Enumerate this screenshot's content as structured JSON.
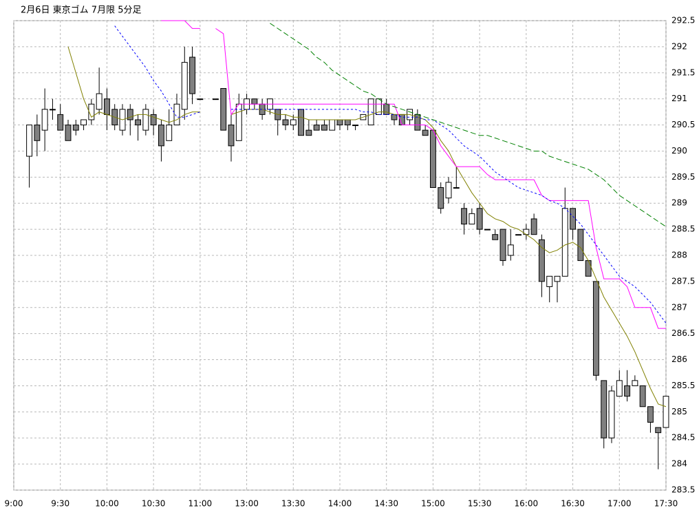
{
  "chart_data": {
    "type": "candlestick",
    "title": "2月6日 東京ゴム 7月限 5分足",
    "open": [
      null,
      null,
      289.9,
      290.5,
      290.4,
      290.8,
      290.7,
      290.5,
      290.5,
      290.5,
      290.6,
      290.8,
      291.0,
      290.8,
      290.4,
      290.8,
      290.6,
      290.4,
      290.7,
      290.5,
      290.2,
      290.5,
      290.8,
      291.8,
      291.0,
      null,
      291.0,
      291.2,
      290.5,
      290.2,
      290.8,
      291.0,
      290.9,
      290.8,
      290.8,
      290.6,
      290.5,
      290.8,
      290.4,
      290.5,
      290.5,
      290.4,
      290.6,
      290.6,
      290.5,
      290.6,
      290.5,
      290.7,
      290.9,
      290.7,
      290.7,
      290.6,
      290.7,
      290.4,
      290.4,
      289.3,
      289.1,
      289.3,
      288.9,
      288.6,
      288.9,
      288.5,
      288.4,
      288.5,
      288.0,
      288.4,
      288.4,
      288.7,
      288.3,
      287.4,
      287.5,
      287.6,
      288.9,
      288.5,
      287.9,
      287.5,
      285.6,
      284.5,
      285.3,
      285.5,
      285.5,
      285.5,
      285.1,
      284.7,
      284.7
    ],
    "high": [
      null,
      null,
      290.5,
      290.7,
      291.2,
      291.0,
      290.9,
      290.6,
      290.6,
      290.6,
      291.0,
      291.6,
      291.2,
      290.9,
      290.9,
      290.9,
      290.7,
      290.9,
      290.8,
      290.6,
      290.8,
      291.1,
      292.0,
      292.0,
      291.0,
      null,
      291.0,
      291.2,
      290.7,
      291.1,
      291.1,
      291.0,
      291.0,
      291.0,
      290.8,
      290.7,
      290.7,
      290.8,
      290.6,
      290.6,
      290.6,
      290.6,
      290.6,
      290.6,
      290.5,
      290.7,
      291.0,
      291.0,
      291.0,
      290.7,
      290.7,
      290.8,
      290.8,
      290.5,
      290.4,
      289.4,
      289.5,
      289.7,
      289.0,
      288.9,
      289.0,
      288.5,
      288.5,
      288.5,
      288.5,
      288.4,
      288.6,
      288.8,
      288.4,
      287.6,
      287.6,
      289.3,
      288.9,
      288.5,
      287.9,
      287.5,
      285.6,
      285.5,
      285.8,
      285.8,
      285.7,
      285.5,
      285.1,
      284.7,
      285.3
    ],
    "low": [
      null,
      null,
      289.3,
      289.9,
      290.0,
      290.6,
      290.4,
      290.2,
      290.3,
      290.4,
      290.5,
      290.7,
      290.4,
      290.4,
      290.3,
      290.3,
      290.2,
      290.3,
      290.3,
      289.8,
      290.2,
      290.5,
      290.6,
      290.9,
      291.0,
      null,
      291.0,
      290.4,
      289.8,
      290.2,
      290.7,
      290.8,
      290.6,
      290.7,
      290.3,
      290.4,
      290.4,
      290.3,
      290.3,
      290.4,
      290.4,
      290.4,
      290.4,
      290.4,
      290.4,
      290.6,
      290.5,
      290.7,
      290.7,
      290.5,
      290.5,
      290.5,
      290.4,
      290.3,
      289.3,
      288.8,
      289.0,
      289.3,
      288.4,
      288.6,
      288.4,
      288.5,
      288.3,
      287.8,
      287.9,
      288.4,
      288.3,
      288.4,
      287.2,
      287.1,
      287.1,
      287.6,
      288.3,
      287.9,
      287.6,
      285.6,
      284.3,
      284.4,
      285.3,
      285.2,
      285.5,
      285.1,
      284.6,
      283.9,
      284.7
    ],
    "close": [
      null,
      null,
      290.5,
      290.2,
      290.8,
      290.8,
      290.4,
      290.2,
      290.4,
      290.6,
      290.9,
      291.1,
      290.7,
      290.5,
      290.8,
      290.6,
      290.5,
      290.8,
      290.5,
      290.1,
      290.5,
      290.9,
      291.7,
      291.1,
      291.0,
      null,
      291.0,
      290.4,
      290.1,
      290.9,
      291.0,
      290.9,
      290.7,
      291.0,
      290.6,
      290.5,
      290.6,
      290.3,
      290.3,
      290.4,
      290.4,
      290.6,
      290.5,
      290.5,
      290.5,
      290.7,
      291.0,
      291.0,
      290.7,
      290.6,
      290.5,
      290.8,
      290.4,
      290.3,
      289.3,
      288.9,
      289.4,
      289.3,
      288.6,
      288.8,
      288.5,
      288.5,
      288.3,
      287.9,
      288.2,
      288.4,
      288.5,
      288.4,
      287.5,
      287.6,
      287.6,
      288.9,
      288.5,
      287.9,
      287.6,
      285.7,
      284.5,
      285.4,
      285.6,
      285.3,
      285.6,
      285.1,
      284.8,
      284.6,
      285.3
    ],
    "up_color": "#ffffff",
    "down_color": "#808080",
    "lines": [
      {
        "color": "#808000",
        "dash": "none",
        "values": [
          null,
          null,
          null,
          null,
          null,
          null,
          null,
          292.0,
          291.5,
          291.0,
          290.65,
          290.75,
          290.7,
          290.65,
          290.6,
          290.65,
          290.7,
          290.7,
          290.65,
          290.6,
          290.55,
          290.6,
          290.7,
          290.75,
          290.75,
          null,
          null,
          null,
          290.7,
          290.75,
          290.8,
          290.8,
          290.8,
          290.75,
          290.7,
          290.7,
          290.65,
          290.65,
          290.6,
          290.6,
          290.6,
          290.6,
          290.6,
          290.6,
          290.6,
          290.65,
          290.7,
          290.75,
          290.75,
          290.7,
          290.7,
          290.7,
          290.65,
          290.6,
          290.45,
          290.2,
          290.0,
          289.7,
          289.45,
          289.2,
          289.0,
          288.8,
          288.7,
          288.65,
          288.55,
          288.5,
          288.4,
          288.3,
          288.15,
          288.05,
          288.1,
          288.2,
          288.25,
          288.15,
          287.9,
          287.55,
          287.2,
          286.95,
          286.7,
          286.45,
          286.15,
          285.8,
          285.45,
          285.15,
          285.1
        ]
      },
      {
        "color": "#ff00ff",
        "dash": "none",
        "values": [
          null,
          null,
          null,
          null,
          null,
          null,
          null,
          null,
          null,
          null,
          null,
          null,
          null,
          null,
          null,
          null,
          null,
          null,
          null,
          292.5,
          292.5,
          292.5,
          292.5,
          292.35,
          292.35,
          null,
          292.35,
          292.25,
          290.7,
          290.9,
          290.9,
          290.9,
          290.9,
          290.9,
          290.9,
          290.9,
          290.9,
          290.9,
          290.9,
          290.9,
          290.9,
          290.9,
          290.9,
          290.9,
          290.9,
          290.9,
          290.9,
          290.9,
          290.9,
          290.9,
          290.5,
          290.5,
          290.5,
          290.5,
          290.4,
          290.1,
          289.9,
          289.7,
          289.7,
          289.7,
          289.7,
          289.55,
          289.45,
          289.45,
          289.45,
          289.45,
          289.45,
          289.45,
          289.15,
          289.05,
          289.05,
          289.05,
          289.05,
          289.05,
          289.05,
          288.15,
          287.55,
          287.55,
          287.55,
          287.4,
          287.0,
          287.0,
          287.0,
          286.6,
          286.6
        ]
      },
      {
        "color": "#0000ff",
        "dash": "3,3",
        "values": [
          null,
          null,
          null,
          null,
          null,
          null,
          null,
          null,
          null,
          null,
          null,
          null,
          null,
          292.4,
          292.2,
          292.0,
          291.8,
          291.6,
          291.35,
          291.15,
          290.9,
          290.65,
          290.65,
          290.7,
          290.75,
          null,
          null,
          null,
          290.8,
          290.8,
          290.8,
          290.8,
          290.8,
          290.8,
          290.8,
          290.8,
          290.8,
          290.8,
          290.8,
          290.8,
          290.8,
          290.8,
          290.8,
          290.8,
          290.8,
          290.75,
          290.75,
          290.7,
          290.7,
          290.7,
          290.65,
          290.65,
          290.65,
          290.6,
          290.6,
          290.5,
          290.4,
          290.25,
          290.1,
          290.0,
          289.9,
          289.75,
          289.6,
          289.5,
          289.4,
          289.3,
          289.25,
          289.2,
          289.15,
          289.05,
          289.0,
          288.9,
          288.75,
          288.6,
          288.4,
          288.2,
          288.0,
          287.8,
          287.6,
          287.5,
          287.4,
          287.25,
          287.1,
          286.9,
          286.7
        ]
      },
      {
        "color": "#008000",
        "dash": "8,4",
        "values": [
          null,
          null,
          null,
          null,
          null,
          null,
          null,
          null,
          null,
          null,
          null,
          null,
          null,
          null,
          null,
          null,
          null,
          null,
          null,
          null,
          null,
          null,
          null,
          null,
          null,
          null,
          null,
          null,
          null,
          null,
          null,
          null,
          null,
          292.45,
          292.35,
          292.25,
          292.15,
          292.05,
          291.95,
          291.8,
          291.7,
          291.55,
          291.45,
          291.35,
          291.25,
          291.15,
          291.1,
          291.0,
          290.9,
          290.85,
          290.8,
          290.75,
          290.7,
          290.65,
          290.6,
          290.55,
          290.5,
          290.45,
          290.4,
          290.35,
          290.3,
          290.3,
          290.25,
          290.2,
          290.15,
          290.1,
          290.05,
          290.0,
          290.0,
          289.9,
          289.85,
          289.8,
          289.75,
          289.7,
          289.65,
          289.55,
          289.45,
          289.3,
          289.15,
          289.05,
          288.95,
          288.85,
          288.75,
          288.65,
          288.55
        ]
      }
    ],
    "xlim": [
      0,
      84
    ],
    "xticks": [
      {
        "value": 0,
        "label": "9:00"
      },
      {
        "value": 6,
        "label": "9:30"
      },
      {
        "value": 12,
        "label": "10:00"
      },
      {
        "value": 18,
        "label": "10:30"
      },
      {
        "value": 24,
        "label": "11:00"
      },
      {
        "value": 30,
        "label": "13:00"
      },
      {
        "value": 36,
        "label": "13:30"
      },
      {
        "value": 42,
        "label": "14:00"
      },
      {
        "value": 48,
        "label": "14:30"
      },
      {
        "value": 54,
        "label": "15:00"
      },
      {
        "value": 60,
        "label": "15:30"
      },
      {
        "value": 66,
        "label": "16:00"
      },
      {
        "value": 72,
        "label": "16:30"
      },
      {
        "value": 78,
        "label": "17:00"
      },
      {
        "value": 84,
        "label": "17:30"
      }
    ],
    "ylim": [
      283.5,
      292.5
    ],
    "yticks": [
      283.5,
      284,
      284.5,
      285,
      285.5,
      286,
      286.5,
      287,
      287.5,
      288,
      288.5,
      289,
      289.5,
      290,
      290.5,
      291,
      291.5,
      292,
      292.5
    ],
    "grid": true
  }
}
